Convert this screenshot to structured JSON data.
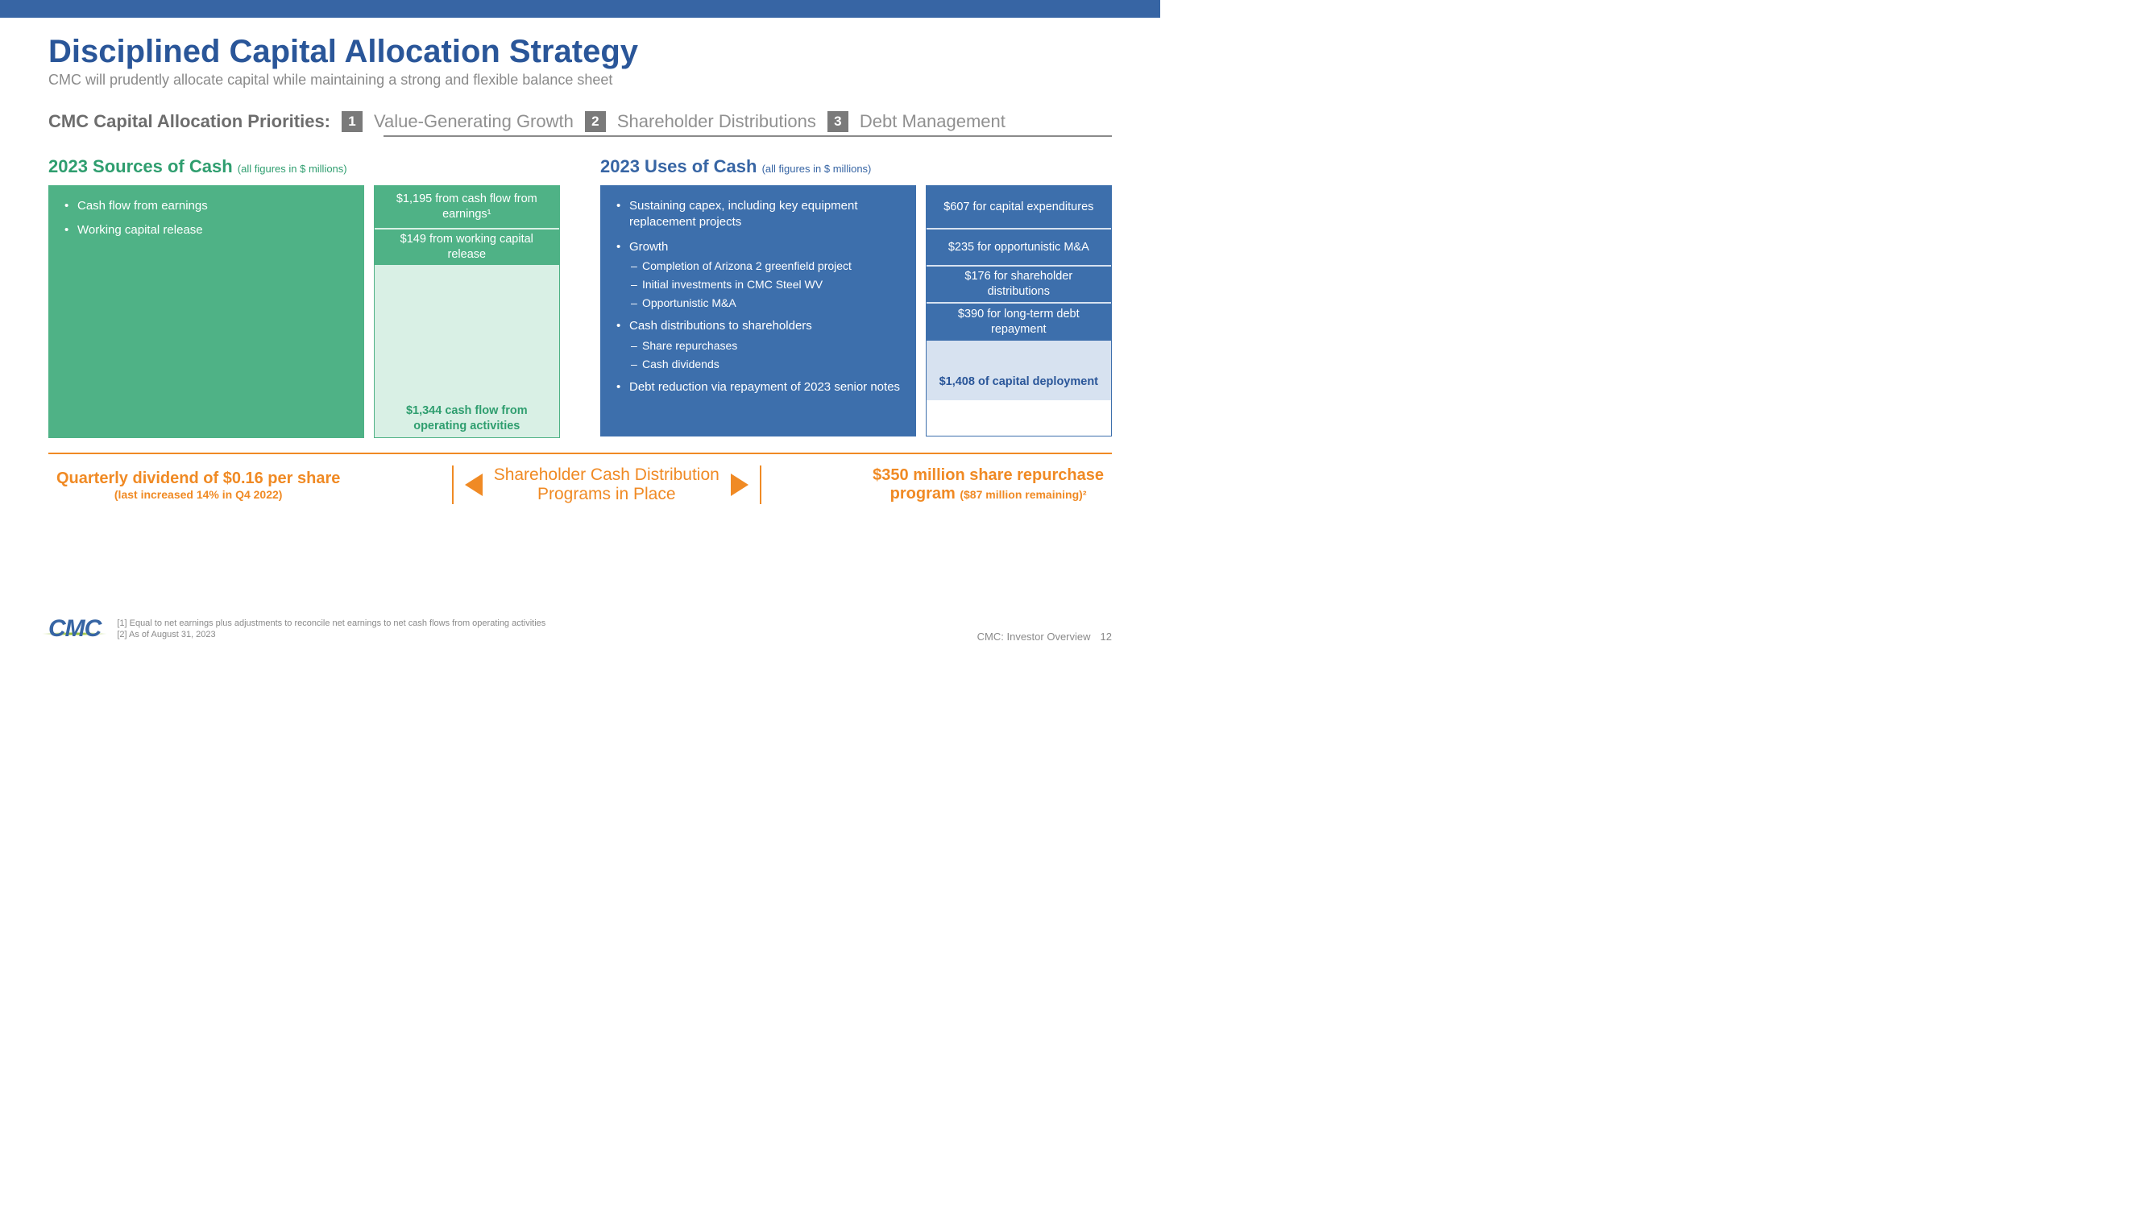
{
  "header": {
    "title": "Disciplined Capital Allocation Strategy",
    "subtitle": "CMC will prudently allocate capital while maintaining a strong and flexible balance sheet"
  },
  "priorities": {
    "label": "CMC Capital Allocation Priorities:",
    "items": [
      {
        "num": "1",
        "text": "Value-Generating Growth"
      },
      {
        "num": "2",
        "text": "Shareholder Distributions"
      },
      {
        "num": "3",
        "text": "Debt Management"
      }
    ]
  },
  "sources": {
    "title": "2023 Sources of Cash",
    "note": "(all figures in $ millions)",
    "title_color": "#2f9e6f",
    "desc_bg": "#4fb286",
    "bullets": [
      {
        "text": "Cash flow from earnings"
      },
      {
        "text": "Working capital release"
      }
    ],
    "stack": {
      "border_color": "#4fb286",
      "segments": [
        {
          "label": "$1,195 from cash flow from earnings¹",
          "height": 54,
          "bg": "#4fb286",
          "fg": "#ffffff",
          "sep": true
        },
        {
          "label": "$149 from working capital release",
          "height": 44,
          "bg": "#4fb286",
          "fg": "#ffffff",
          "sep": false
        },
        {
          "label": "",
          "height": 168,
          "bg": "#d9f0e5",
          "fg": "#2f9e6f",
          "sep": false
        }
      ],
      "total": {
        "label": "$1,344 cash flow from operating activities",
        "height": 46,
        "bg": "#d9f0e5",
        "fg": "#2f9e6f"
      }
    }
  },
  "uses": {
    "title": "2023 Uses of Cash",
    "note": "(all figures in $ millions)",
    "title_color": "#3765a4",
    "desc_bg": "#3d6fac",
    "bullets": [
      {
        "text": "Sustaining capex, including key equipment replacement projects"
      },
      {
        "text": "Growth",
        "sub": [
          "Completion of Arizona 2 greenfield project",
          "Initial investments in CMC Steel WV",
          "Opportunistic M&A"
        ]
      },
      {
        "text": "Cash distributions to shareholders",
        "sub": [
          "Share repurchases",
          "Cash dividends"
        ]
      },
      {
        "text": "Debt reduction via repayment of 2023 senior notes"
      }
    ],
    "stack": {
      "border_color": "#3d6fac",
      "segments": [
        {
          "label": "$607 for capital expenditures",
          "height": 54,
          "bg": "#3d6fac",
          "fg": "#ffffff",
          "sep": true
        },
        {
          "label": "$235 for opportunistic M&A",
          "height": 46,
          "bg": "#3d6fac",
          "fg": "#ffffff",
          "sep": true
        },
        {
          "label": "$176 for shareholder distributions",
          "height": 46,
          "bg": "#3d6fac",
          "fg": "#ffffff",
          "sep": true
        },
        {
          "label": "$390 for long-term debt repayment",
          "height": 46,
          "bg": "#3d6fac",
          "fg": "#ffffff",
          "sep": false
        },
        {
          "label": "",
          "height": 28,
          "bg": "#d7e2f0",
          "fg": "#2a5699",
          "sep": false
        }
      ],
      "total": {
        "label": "$1,408 of capital deployment",
        "height": 46,
        "bg": "#d7e2f0",
        "fg": "#2a5699"
      }
    }
  },
  "bottom": {
    "accent_color": "#f08a24",
    "left": {
      "heading": "Quarterly dividend of $0.16 per share",
      "sub": "(last increased 14% in Q4 2022)"
    },
    "center_line1": "Shareholder Cash Distribution",
    "center_line2": "Programs in Place",
    "right": {
      "heading": "$350 million share repurchase",
      "sub_prefix": "program",
      "sub_paren": "($87 million remaining)²"
    }
  },
  "footer": {
    "logo": "CMC",
    "notes": [
      "[1] Equal to net earnings plus adjustments to reconcile net earnings to net cash flows from operating activities",
      "[2] As of August 31, 2023"
    ],
    "doc": "CMC: Investor Overview",
    "page": "12"
  }
}
